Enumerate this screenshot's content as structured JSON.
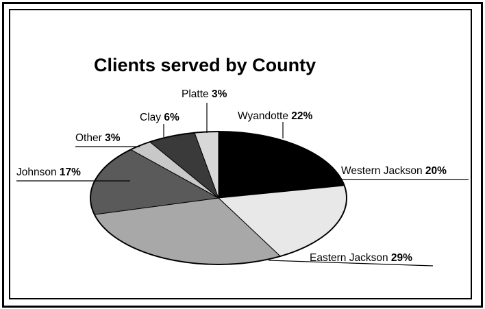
{
  "chart_data": {
    "type": "pie",
    "title": "Clients served by County",
    "slices": [
      {
        "label": "Wyandotte",
        "value": 22,
        "value_label": "22%",
        "color": "#000000"
      },
      {
        "label": "Western Jackson",
        "value": 20,
        "value_label": "20%",
        "color": "#e8e8e8"
      },
      {
        "label": "Eastern Jackson",
        "value": 29,
        "value_label": "29%",
        "color": "#a8a8a8"
      },
      {
        "label": "Johnson",
        "value": 17,
        "value_label": "17%",
        "color": "#5a5a5a"
      },
      {
        "label": "Other",
        "value": 3,
        "value_label": "3%",
        "color": "#c8c8c8"
      },
      {
        "label": "Clay",
        "value": 6,
        "value_label": "6%",
        "color": "#3a3a3a"
      },
      {
        "label": "Platte",
        "value": 3,
        "value_label": "3%",
        "color": "#d8d8d8"
      }
    ],
    "start_angle": "12 o'clock",
    "direction": "clockwise",
    "legend": "none (callout labels)"
  }
}
